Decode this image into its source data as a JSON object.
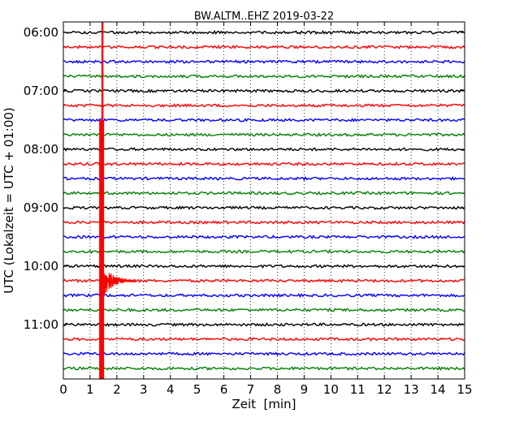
{
  "chart_data": {
    "type": "line",
    "title": "BW.ALTM..EHZ 2019-03-22",
    "xlabel": "Zeit  [min]",
    "ylabel": "UTC (Lokalzeit = UTC + 01:00)",
    "xlim": [
      0,
      15
    ],
    "x_ticks": [
      "0",
      "1",
      "2",
      "3",
      "4",
      "5",
      "6",
      "7",
      "8",
      "9",
      "10",
      "11",
      "12",
      "13",
      "14",
      "15"
    ],
    "y_ticks": [
      "06:00",
      "07:00",
      "08:00",
      "09:00",
      "10:00",
      "11:00"
    ],
    "grid": "vertical dotted",
    "trace_colors": [
      "#000000",
      "#ff0000",
      "#0000ff",
      "#008000"
    ],
    "traces": [
      {
        "start": "06:00",
        "color": "#000000"
      },
      {
        "start": "06:15",
        "color": "#ff0000"
      },
      {
        "start": "06:30",
        "color": "#0000ff"
      },
      {
        "start": "06:45",
        "color": "#008000"
      },
      {
        "start": "07:00",
        "color": "#000000"
      },
      {
        "start": "07:15",
        "color": "#ff0000"
      },
      {
        "start": "07:30",
        "color": "#0000ff"
      },
      {
        "start": "07:45",
        "color": "#008000"
      },
      {
        "start": "08:00",
        "color": "#000000"
      },
      {
        "start": "08:15",
        "color": "#ff0000"
      },
      {
        "start": "08:30",
        "color": "#0000ff"
      },
      {
        "start": "08:45",
        "color": "#008000"
      },
      {
        "start": "09:00",
        "color": "#000000"
      },
      {
        "start": "09:15",
        "color": "#ff0000"
      },
      {
        "start": "09:30",
        "color": "#0000ff"
      },
      {
        "start": "09:45",
        "color": "#008000"
      },
      {
        "start": "10:00",
        "color": "#000000"
      },
      {
        "start": "10:15",
        "color": "#ff0000"
      },
      {
        "start": "10:30",
        "color": "#0000ff"
      },
      {
        "start": "10:45",
        "color": "#008000"
      },
      {
        "start": "11:00",
        "color": "#000000"
      },
      {
        "start": "11:15",
        "color": "#ff0000"
      },
      {
        "start": "11:30",
        "color": "#0000ff"
      },
      {
        "start": "11:45",
        "color": "#008000"
      }
    ],
    "event": {
      "trace_start": "10:15",
      "color": "#ff0000",
      "x_min": 1.4
    }
  }
}
